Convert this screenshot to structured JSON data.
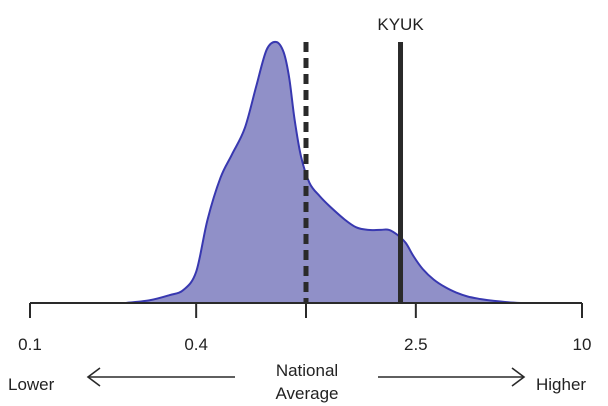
{
  "chart_data": {
    "type": "area",
    "x_scale": "log",
    "xlim": [
      0.1,
      10
    ],
    "ylim": [
      0,
      1
    ],
    "ticks": [
      {
        "value": 0.1,
        "label": "0.1"
      },
      {
        "value": 0.4,
        "label": "0.4"
      },
      {
        "value": 1.0,
        "label": ""
      },
      {
        "value": 2.5,
        "label": "2.5"
      },
      {
        "value": 10,
        "label": "10"
      }
    ],
    "density": {
      "x": [
        0.22,
        0.27,
        0.32,
        0.36,
        0.4,
        0.44,
        0.49,
        0.54,
        0.6,
        0.66,
        0.72,
        0.78,
        0.83,
        0.87,
        0.91,
        0.96,
        1.03,
        1.12,
        1.22,
        1.38,
        1.52,
        1.68,
        1.85,
        2.0,
        2.15,
        2.3,
        2.45,
        2.65,
        2.9,
        3.2,
        3.5,
        3.85,
        4.3,
        4.8,
        5.4,
        6.0
      ],
      "y": [
        0.0,
        0.01,
        0.03,
        0.05,
        0.12,
        0.32,
        0.48,
        0.57,
        0.67,
        0.83,
        0.97,
        1.0,
        0.96,
        0.86,
        0.7,
        0.56,
        0.46,
        0.41,
        0.37,
        0.32,
        0.29,
        0.28,
        0.28,
        0.28,
        0.26,
        0.23,
        0.18,
        0.13,
        0.09,
        0.06,
        0.04,
        0.025,
        0.015,
        0.008,
        0.003,
        0.0
      ]
    },
    "reference_lines": [
      {
        "value": 1.0,
        "style": "dashed",
        "label": ""
      },
      {
        "value": 2.2,
        "style": "solid",
        "label": "KYUK"
      }
    ],
    "annotations": {
      "lower": "Lower",
      "higher": "Higher",
      "center_line1": "National",
      "center_line2": "Average"
    },
    "colors": {
      "fill": "#9090c8",
      "stroke": "#3838b0",
      "lines": "#2a2a2a"
    },
    "grid": false,
    "legend": "none"
  }
}
